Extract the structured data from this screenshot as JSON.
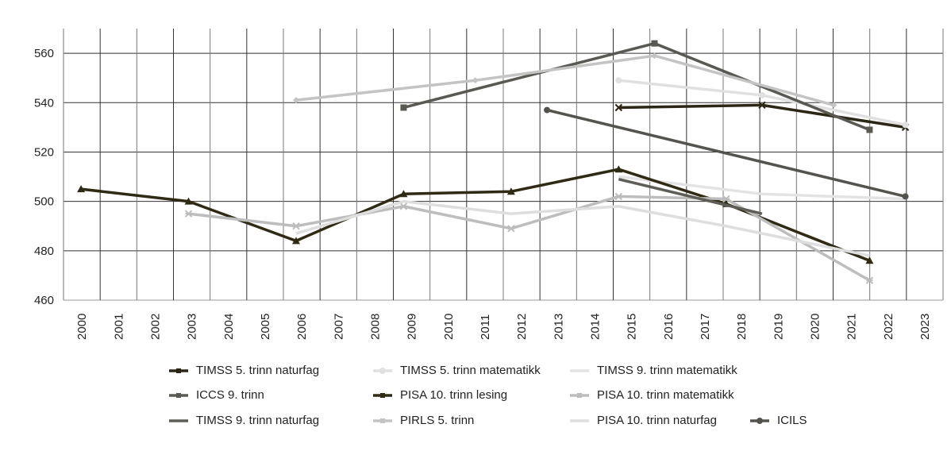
{
  "chart_data": {
    "type": "line",
    "title": "",
    "xlabel": "",
    "ylabel": "",
    "categories": [
      "2000",
      "2001",
      "2002",
      "2003",
      "2004",
      "2005",
      "2006",
      "2007",
      "2008",
      "2009",
      "2010",
      "2011",
      "2012",
      "2013",
      "2014",
      "2015",
      "2016",
      "2017",
      "2018",
      "2019",
      "2020",
      "2021",
      "2022",
      "2023"
    ],
    "ylim": [
      460,
      570
    ],
    "yticks": [
      460,
      480,
      500,
      520,
      540,
      560
    ],
    "grid": true,
    "legend_position": "bottom",
    "series": [
      {
        "name": "TIMSS 5. trinn naturfag",
        "color": "#2b2616",
        "marker": "x",
        "points": [
          [
            2015,
            538
          ],
          [
            2019,
            539
          ],
          [
            2023,
            530
          ]
        ]
      },
      {
        "name": "TIMSS 5. trinn matematikk",
        "color": "#e0e0e0",
        "marker": "circle",
        "points": [
          [
            2015,
            549
          ],
          [
            2019,
            543
          ],
          [
            2023,
            531
          ]
        ]
      },
      {
        "name": "TIMSS 9. trinn matematikk",
        "color": "#e3e3e3",
        "marker": "dash",
        "points": [
          [
            2015,
            510
          ],
          [
            2019,
            503
          ],
          [
            2023,
            501
          ]
        ]
      },
      {
        "name": "ICCS 9. trinn",
        "color": "#5a5852",
        "marker": "square",
        "points": [
          [
            2009,
            538
          ],
          [
            2016,
            564
          ],
          [
            2022,
            529
          ]
        ]
      },
      {
        "name": "PISA 10. trinn lesing",
        "color": "#2e2a14",
        "marker": "triangle",
        "points": [
          [
            2000,
            505
          ],
          [
            2003,
            500
          ],
          [
            2006,
            484
          ],
          [
            2009,
            503
          ],
          [
            2012,
            504
          ],
          [
            2015,
            513
          ],
          [
            2018,
            499
          ],
          [
            2022,
            476
          ]
        ]
      },
      {
        "name": "PISA 10. trinn matematikk",
        "color": "#bdbdbd",
        "marker": "asterisk",
        "points": [
          [
            2003,
            495
          ],
          [
            2006,
            490
          ],
          [
            2009,
            498
          ],
          [
            2012,
            489
          ],
          [
            2015,
            502
          ],
          [
            2018,
            501
          ],
          [
            2022,
            468
          ]
        ]
      },
      {
        "name": "TIMSS 9. trinn naturfag",
        "color": "#5f5d57",
        "marker": "dash",
        "points": [
          [
            2015,
            509
          ],
          [
            2019,
            495
          ]
        ]
      },
      {
        "name": "PIRLS 5. trinn",
        "color": "#c4c4c4",
        "marker": "diamond",
        "points": [
          [
            2006,
            541
          ],
          [
            2011,
            549
          ],
          [
            2016,
            559
          ],
          [
            2021,
            539
          ]
        ]
      },
      {
        "name": "PISA 10. trinn naturfag",
        "color": "#dedede",
        "marker": "dash",
        "points": [
          [
            2006,
            487
          ],
          [
            2009,
            500
          ],
          [
            2012,
            495
          ],
          [
            2015,
            498
          ],
          [
            2018,
            490
          ],
          [
            2022,
            478
          ]
        ]
      },
      {
        "name": "ICILS",
        "color": "#55534e",
        "marker": "circle",
        "points": [
          [
            2013,
            537
          ],
          [
            2023,
            502
          ]
        ]
      }
    ]
  }
}
